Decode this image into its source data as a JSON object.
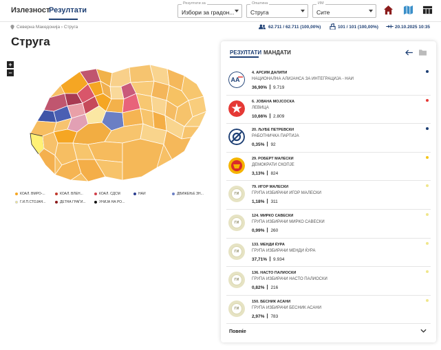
{
  "nav": {
    "tab1": "Излезност",
    "tab2": "Резултати"
  },
  "filters": [
    {
      "label": "Резултати за",
      "value": "Избори за градон..."
    },
    {
      "label": "Општина",
      "value": "Струга"
    },
    {
      "label": "ИМ",
      "value": "Сите"
    }
  ],
  "breadcrumb": "Северна Македонија › Струга",
  "stats": {
    "voters": "62.711 / 62.711 (100,00%)",
    "stations": "101 / 101 (100,00%)",
    "updated": "20.10.2025 10:35"
  },
  "title": "Струга",
  "legend": [
    {
      "label": "КОАЛ. ВМРО-...",
      "color": "#f5a623"
    },
    {
      "label": "КОАЛ. ВЛЕН...",
      "color": "#c0392b"
    },
    {
      "label": "КОАЛ. СДСМ",
      "color": "#d0404a"
    },
    {
      "label": "НАИ",
      "color": "#2a3d8f"
    },
    {
      "label": "ДВИЖЕЊЕ ЗН...",
      "color": "#6b7fc4"
    },
    {
      "label": "Г.И.П.СТОЈАН...",
      "color": "#fff176"
    },
    {
      "label": "ДЕТНА ГРАЃИ...",
      "color": "#8b1a1a"
    },
    {
      "label": "УНИЈА НА РО...",
      "color": "#111111"
    }
  ],
  "panel": {
    "tab1": "РЕЗУЛТАТИ",
    "tab2": "МАНДАТИ",
    "more": "Повеќе"
  },
  "results": [
    {
      "name": "4. АРСИМ ДАЛИПИ",
      "party": "НАЦИОНАЛНА АЛИЈАНСА ЗА ИНТЕГРАЦИЈА - НАИ",
      "pct": "36,90%",
      "votes": "9.719",
      "dot": "#1d3f74",
      "logo": "nai"
    },
    {
      "name": "6. ЈОВАНА МОЈСОСКА",
      "party": "ЛЕВИЦА",
      "pct": "10,66%",
      "votes": "2.809",
      "dot": "#e53935",
      "logo": "levica"
    },
    {
      "name": "20. ЉУБЕ ПЕТРЕВСКИ",
      "party": "РАБОТНИЧКА ПАРТИЈА",
      "pct": "0,35%",
      "votes": "92",
      "dot": "#1d3f74",
      "logo": "rp"
    },
    {
      "name": "29. РОБЕРТ МАЛЕСКИ",
      "party": "ДЕМОКРАТИ СКОПЈЕ",
      "pct": "3,13%",
      "votes": "824",
      "dot": "#f5c518",
      "logo": "dem"
    },
    {
      "name": "79. ИГОР МАЛЕСКИ",
      "party": "ГРУПА ИЗБИРАЧИ ИГОР МАЛЕСКИ",
      "pct": "1,18%",
      "votes": "311",
      "dot": "#f0e68c",
      "logo": "ГИ"
    },
    {
      "name": "124. МИРКО САВЕСКИ",
      "party": "ГРУПА ИЗБИРАЧИ МИРКО САВЕСКИ",
      "pct": "0,99%",
      "votes": "260",
      "dot": "#f0e68c",
      "logo": "ГИ"
    },
    {
      "name": "133. МЕНДИ ЌУРА",
      "party": "ГРУПА ИЗБИРАЧИ МЕНДИ ЌУРА",
      "pct": "37,71%",
      "votes": "9.934",
      "dot": "#f0e68c",
      "logo": "ГИ"
    },
    {
      "name": "136. НАСТО ПАЛИОСКИ",
      "party": "ГРУПА ИЗБИРАЧИ НАСТО ПАЛИОСКИ",
      "pct": "0,82%",
      "votes": "216",
      "dot": "#f0e68c",
      "logo": "ГИ"
    },
    {
      "name": "150. БЕСНИК АСАНИ",
      "party": "ГРУПА ИЗБИРАЧИ БЕСНИК АСАНИ",
      "pct": "2,97%",
      "votes": "783",
      "dot": "#f0e68c",
      "logo": "ГИ"
    }
  ]
}
